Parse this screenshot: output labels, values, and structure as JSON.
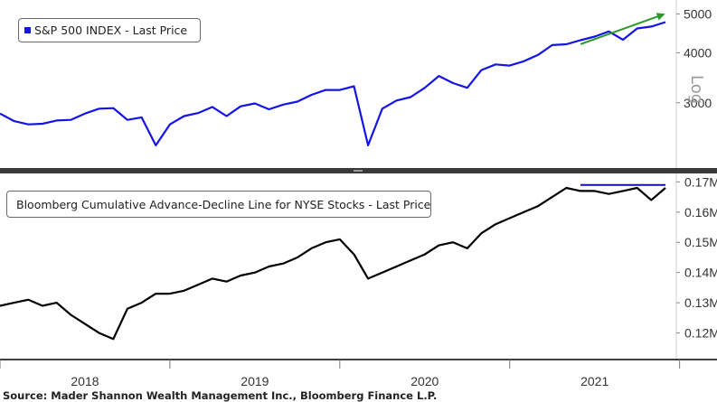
{
  "colors": {
    "sp500": "#1414e6",
    "adline": "#000000",
    "trend_up": "#2a9a2a",
    "trend_flat": "#1010b0",
    "axis_text": "#333333"
  },
  "legend_top": {
    "label": "S&P 500 INDEX - Last Price"
  },
  "legend_bottom": {
    "label": "Bloomberg Cumulative Advance-Decline Line for NYSE Stocks - Last Price"
  },
  "source": "Source: Mader Shannon Wealth Management Inc., Bloomberg Finance L.P.",
  "chart_data": [
    {
      "type": "line",
      "series": [
        {
          "name": "S&P 500 INDEX - Last Price"
        }
      ],
      "y_scale": "log",
      "y_axis_label": "Log",
      "y_ticks": [
        "5000",
        "4000",
        "3000"
      ],
      "ylim": [
        2150,
        5250
      ],
      "x_range": [
        "2018-01",
        "2021-12"
      ],
      "x": [
        "2018-01",
        "2018-02",
        "2018-03",
        "2018-04",
        "2018-05",
        "2018-06",
        "2018-07",
        "2018-08",
        "2018-09",
        "2018-10",
        "2018-11",
        "2018-12",
        "2019-01",
        "2019-02",
        "2019-03",
        "2019-04",
        "2019-05",
        "2019-06",
        "2019-07",
        "2019-08",
        "2019-09",
        "2019-10",
        "2019-11",
        "2019-12",
        "2020-01",
        "2020-02",
        "2020-03",
        "2020-04",
        "2020-05",
        "2020-06",
        "2020-07",
        "2020-08",
        "2020-09",
        "2020-10",
        "2020-11",
        "2020-12",
        "2021-01",
        "2021-02",
        "2021-03",
        "2021-04",
        "2021-05",
        "2021-06",
        "2021-07",
        "2021-08",
        "2021-09",
        "2021-10",
        "2021-11",
        "2021-12"
      ],
      "values": [
        2820,
        2700,
        2650,
        2660,
        2710,
        2720,
        2820,
        2900,
        2910,
        2720,
        2760,
        2350,
        2650,
        2780,
        2830,
        2930,
        2780,
        2940,
        2990,
        2890,
        2970,
        3020,
        3140,
        3230,
        3230,
        3300,
        2350,
        2900,
        3040,
        3100,
        3270,
        3500,
        3360,
        3270,
        3620,
        3740,
        3715,
        3810,
        3950,
        4180,
        4200,
        4300,
        4390,
        4520,
        4310,
        4600,
        4650,
        4770
      ],
      "annotations": [
        {
          "type": "trend-arrow",
          "from": [
            "2021-06",
            4200
          ],
          "to": [
            "2021-12",
            4950
          ]
        }
      ]
    },
    {
      "type": "line",
      "series": [
        {
          "name": "Bloomberg Cumulative Advance-Decline Line for NYSE Stocks - Last Price"
        }
      ],
      "y_ticks": [
        "0.17M",
        "0.16M",
        "0.15M",
        "0.14M",
        "0.13M",
        "0.12M"
      ],
      "ylim": [
        0.113,
        0.171
      ],
      "x_ticks": [
        "2018",
        "2019",
        "2020",
        "2021"
      ],
      "x_range": [
        "2018-01",
        "2021-12"
      ],
      "x": [
        "2018-01",
        "2018-02",
        "2018-03",
        "2018-04",
        "2018-05",
        "2018-06",
        "2018-07",
        "2018-08",
        "2018-09",
        "2018-10",
        "2018-11",
        "2018-12",
        "2019-01",
        "2019-02",
        "2019-03",
        "2019-04",
        "2019-05",
        "2019-06",
        "2019-07",
        "2019-08",
        "2019-09",
        "2019-10",
        "2019-11",
        "2019-12",
        "2020-01",
        "2020-02",
        "2020-03",
        "2020-04",
        "2020-05",
        "2020-06",
        "2020-07",
        "2020-08",
        "2020-09",
        "2020-10",
        "2020-11",
        "2020-12",
        "2021-01",
        "2021-02",
        "2021-03",
        "2021-04",
        "2021-05",
        "2021-06",
        "2021-07",
        "2021-08",
        "2021-09",
        "2021-10",
        "2021-11",
        "2021-12"
      ],
      "values": [
        0.129,
        0.13,
        0.131,
        0.129,
        0.13,
        0.126,
        0.123,
        0.12,
        0.118,
        0.128,
        0.13,
        0.133,
        0.133,
        0.134,
        0.136,
        0.138,
        0.137,
        0.139,
        0.14,
        0.142,
        0.143,
        0.145,
        0.148,
        0.15,
        0.151,
        0.146,
        0.138,
        0.14,
        0.142,
        0.144,
        0.146,
        0.149,
        0.15,
        0.148,
        0.153,
        0.156,
        0.158,
        0.16,
        0.162,
        0.165,
        0.168,
        0.167,
        0.167,
        0.166,
        0.167,
        0.168,
        0.164,
        0.168
      ],
      "annotations": [
        {
          "type": "horizontal-line",
          "y": 0.169,
          "from": "2021-06",
          "to": "2021-12"
        }
      ]
    }
  ]
}
